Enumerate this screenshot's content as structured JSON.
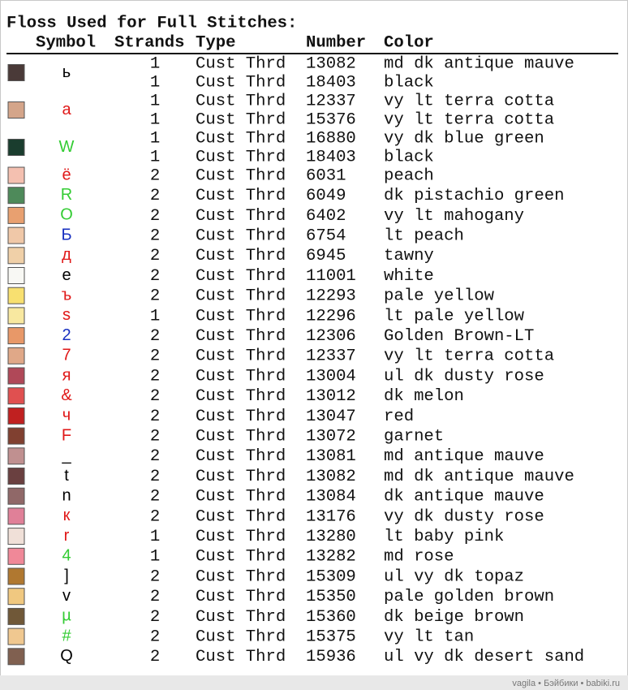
{
  "title": "Floss Used for Full Stitches:",
  "headers": [
    "Symbol",
    "Strands",
    "Type",
    "Number",
    "Color"
  ],
  "rows": [
    {
      "swatch": "#4a3a38",
      "symbol": "ь",
      "symbol_color": "#000000",
      "threads": [
        {
          "strands": 1,
          "type": "Cust Thrd",
          "number": 13082,
          "color": "md dk antique mauve"
        },
        {
          "strands": 1,
          "type": "Cust Thrd",
          "number": 18403,
          "color": "black"
        }
      ]
    },
    {
      "swatch": "#d4a58a",
      "symbol": "а",
      "symbol_color": "#e01818",
      "threads": [
        {
          "strands": 1,
          "type": "Cust Thrd",
          "number": 12337,
          "color": "vy lt terra cotta"
        },
        {
          "strands": 1,
          "type": "Cust Thrd",
          "number": 15376,
          "color": "vy lt terra cotta"
        }
      ]
    },
    {
      "swatch": "#1a3d2e",
      "symbol": "W",
      "symbol_color": "#33cc33",
      "threads": [
        {
          "strands": 1,
          "type": "Cust Thrd",
          "number": 16880,
          "color": "vy dk blue green"
        },
        {
          "strands": 1,
          "type": "Cust Thrd",
          "number": 18403,
          "color": "black"
        }
      ]
    },
    {
      "swatch": "#f4c0b0",
      "symbol": "ё",
      "symbol_color": "#e01818",
      "threads": [
        {
          "strands": 2,
          "type": "Cust Thrd",
          "number": 6031,
          "color": "peach"
        }
      ]
    },
    {
      "swatch": "#4e8a5a",
      "symbol": "R",
      "symbol_color": "#33cc33",
      "threads": [
        {
          "strands": 2,
          "type": "Cust Thrd",
          "number": 6049,
          "color": "dk pistachio green"
        }
      ]
    },
    {
      "swatch": "#e8a070",
      "symbol": "O",
      "symbol_color": "#33cc33",
      "threads": [
        {
          "strands": 2,
          "type": "Cust Thrd",
          "number": 6402,
          "color": "vy lt mahogany"
        }
      ]
    },
    {
      "swatch": "#f0c8a8",
      "symbol": "Б",
      "symbol_color": "#1830c0",
      "threads": [
        {
          "strands": 2,
          "type": "Cust Thrd",
          "number": 6754,
          "color": "lt peach"
        }
      ]
    },
    {
      "swatch": "#f0d0a8",
      "symbol": "д",
      "symbol_color": "#e01818",
      "threads": [
        {
          "strands": 2,
          "type": "Cust Thrd",
          "number": 6945,
          "color": "tawny"
        }
      ]
    },
    {
      "swatch": "#f8f8f4",
      "symbol": "е",
      "symbol_color": "#000000",
      "threads": [
        {
          "strands": 2,
          "type": "Cust Thrd",
          "number": 11001,
          "color": "white"
        }
      ]
    },
    {
      "swatch": "#f8e070",
      "symbol": "ъ",
      "symbol_color": "#e01818",
      "threads": [
        {
          "strands": 2,
          "type": "Cust Thrd",
          "number": 12293,
          "color": "pale yellow"
        }
      ]
    },
    {
      "swatch": "#f8e8a0",
      "symbol": "s",
      "symbol_color": "#e01818",
      "threads": [
        {
          "strands": 1,
          "type": "Cust Thrd",
          "number": 12296,
          "color": "lt pale yellow"
        }
      ]
    },
    {
      "swatch": "#e89868",
      "symbol": "2",
      "symbol_color": "#1830c0",
      "threads": [
        {
          "strands": 2,
          "type": "Cust Thrd",
          "number": 12306,
          "color": "Golden Brown-LT"
        }
      ]
    },
    {
      "swatch": "#e0a888",
      "symbol": "7",
      "symbol_color": "#e01818",
      "threads": [
        {
          "strands": 2,
          "type": "Cust Thrd",
          "number": 12337,
          "color": "vy lt terra cotta"
        }
      ]
    },
    {
      "swatch": "#b04858",
      "symbol": "я",
      "symbol_color": "#e01818",
      "threads": [
        {
          "strands": 2,
          "type": "Cust Thrd",
          "number": 13004,
          "color": "ul dk dusty rose"
        }
      ]
    },
    {
      "swatch": "#e05050",
      "symbol": "&",
      "symbol_color": "#e01818",
      "threads": [
        {
          "strands": 2,
          "type": "Cust Thrd",
          "number": 13012,
          "color": "dk melon"
        }
      ]
    },
    {
      "swatch": "#c02020",
      "symbol": "ч",
      "symbol_color": "#e01818",
      "threads": [
        {
          "strands": 2,
          "type": "Cust Thrd",
          "number": 13047,
          "color": "red"
        }
      ]
    },
    {
      "swatch": "#804030",
      "symbol": "F",
      "symbol_color": "#e01818",
      "threads": [
        {
          "strands": 2,
          "type": "Cust Thrd",
          "number": 13072,
          "color": "garnet"
        }
      ]
    },
    {
      "swatch": "#c09090",
      "symbol": "_",
      "symbol_color": "#000000",
      "threads": [
        {
          "strands": 2,
          "type": "Cust Thrd",
          "number": 13081,
          "color": "md antique mauve"
        }
      ]
    },
    {
      "swatch": "#6a4040",
      "symbol": "t",
      "symbol_color": "#000000",
      "threads": [
        {
          "strands": 2,
          "type": "Cust Thrd",
          "number": 13082,
          "color": "md dk antique mauve"
        }
      ]
    },
    {
      "swatch": "#906868",
      "symbol": "n",
      "symbol_color": "#000000",
      "threads": [
        {
          "strands": 2,
          "type": "Cust Thrd",
          "number": 13084,
          "color": "dk antique mauve"
        }
      ]
    },
    {
      "swatch": "#e08098",
      "symbol": "к",
      "symbol_color": "#e01818",
      "threads": [
        {
          "strands": 2,
          "type": "Cust Thrd",
          "number": 13176,
          "color": "vy dk dusty rose"
        }
      ]
    },
    {
      "swatch": "#f0e0d8",
      "symbol": "r",
      "symbol_color": "#e01818",
      "threads": [
        {
          "strands": 1,
          "type": "Cust Thrd",
          "number": 13280,
          "color": "lt baby pink"
        }
      ]
    },
    {
      "swatch": "#f08898",
      "symbol": "4",
      "symbol_color": "#33cc33",
      "threads": [
        {
          "strands": 1,
          "type": "Cust Thrd",
          "number": 13282,
          "color": "md rose"
        }
      ]
    },
    {
      "swatch": "#b07830",
      "symbol": "]",
      "symbol_color": "#000000",
      "threads": [
        {
          "strands": 2,
          "type": "Cust Thrd",
          "number": 15309,
          "color": "ul vy dk topaz"
        }
      ]
    },
    {
      "swatch": "#f0c880",
      "symbol": "v",
      "symbol_color": "#000000",
      "threads": [
        {
          "strands": 2,
          "type": "Cust Thrd",
          "number": 15350,
          "color": "pale golden brown"
        }
      ]
    },
    {
      "swatch": "#705838",
      "symbol": "µ",
      "symbol_color": "#33cc33",
      "threads": [
        {
          "strands": 2,
          "type": "Cust Thrd",
          "number": 15360,
          "color": "dk beige brown"
        }
      ]
    },
    {
      "swatch": "#f0c890",
      "symbol": "#",
      "symbol_color": "#33cc33",
      "threads": [
        {
          "strands": 2,
          "type": "Cust Thrd",
          "number": 15375,
          "color": "vy lt tan"
        }
      ]
    },
    {
      "swatch": "#806050",
      "symbol": "Q",
      "symbol_color": "#000000",
      "threads": [
        {
          "strands": 2,
          "type": "Cust Thrd",
          "number": 15936,
          "color": "ul vy dk desert sand"
        }
      ]
    }
  ],
  "watermark": "vagila • Бэйбики • babiki.ru"
}
